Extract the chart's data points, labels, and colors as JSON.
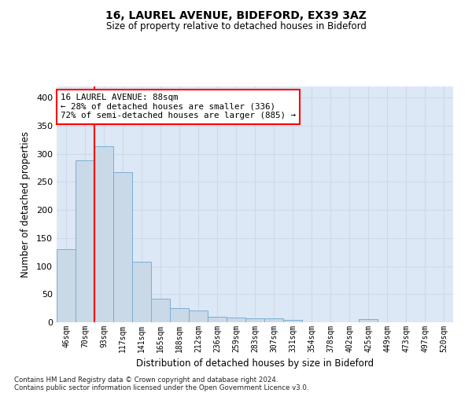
{
  "title_line1": "16, LAUREL AVENUE, BIDEFORD, EX39 3AZ",
  "title_line2": "Size of property relative to detached houses in Bideford",
  "xlabel": "Distribution of detached houses by size in Bideford",
  "ylabel": "Number of detached properties",
  "categories": [
    "46sqm",
    "70sqm",
    "93sqm",
    "117sqm",
    "141sqm",
    "165sqm",
    "188sqm",
    "212sqm",
    "236sqm",
    "259sqm",
    "283sqm",
    "307sqm",
    "331sqm",
    "354sqm",
    "378sqm",
    "402sqm",
    "425sqm",
    "449sqm",
    "473sqm",
    "497sqm",
    "520sqm"
  ],
  "values": [
    130,
    288,
    313,
    268,
    108,
    42,
    25,
    21,
    10,
    9,
    7,
    7,
    4,
    0,
    0,
    0,
    5,
    0,
    0,
    0,
    0
  ],
  "bar_color": "#c9d9e8",
  "bar_edge_color": "#7bafd4",
  "grid_color": "#d0d8e8",
  "background_color": "#dce8f5",
  "red_line_x": 1.5,
  "annotation_text": "16 LAUREL AVENUE: 88sqm\n← 28% of detached houses are smaller (336)\n72% of semi-detached houses are larger (885) →",
  "ylim": [
    0,
    420
  ],
  "yticks": [
    0,
    50,
    100,
    150,
    200,
    250,
    300,
    350,
    400
  ],
  "footnote_line1": "Contains HM Land Registry data © Crown copyright and database right 2024.",
  "footnote_line2": "Contains public sector information licensed under the Open Government Licence v3.0."
}
